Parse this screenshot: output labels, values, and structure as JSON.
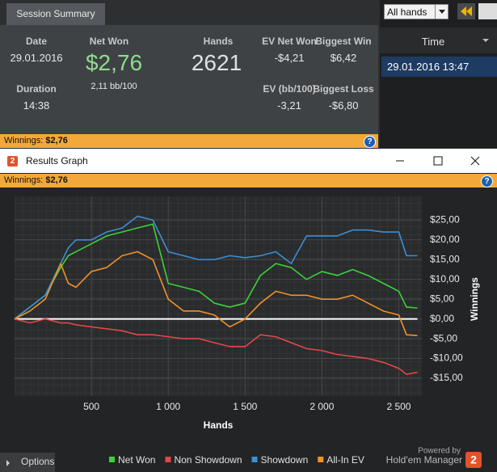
{
  "session_summary": {
    "tab": "Session Summary",
    "date_label": "Date",
    "date": "29.01.2016",
    "net_won_label": "Net Won",
    "net_won": "$2,76",
    "bb_per_100": "2,11 bb/100",
    "hands_label": "Hands",
    "hands": "2621",
    "ev_net_won_label": "EV Net Won",
    "ev_net_won": "-$4,21",
    "biggest_win_label": "Biggest Win",
    "biggest_win": "$6,42",
    "duration_label": "Duration",
    "duration": "14:38",
    "ev_bb_label": "EV (bb/100)",
    "ev_bb": "-3,21",
    "biggest_loss_label": "Biggest Loss",
    "biggest_loss": "-$6,80",
    "winnings_label": "Winnings:",
    "winnings": "$2,76"
  },
  "sessions_panel": {
    "filter": "All hands",
    "column": "Time",
    "rows": [
      "29.01.2016 13:47"
    ]
  },
  "window": {
    "icon": "2",
    "title": "Results Graph",
    "winnings_label": "Winnings:",
    "winnings": "$2,76"
  },
  "footer": {
    "options": "Options",
    "powered_by": "Powered by",
    "brand": "Hold'em Manager",
    "logo": "2"
  },
  "chart_data": {
    "type": "line",
    "x_label": "Hands",
    "y_label": "Winnings",
    "x": [
      0,
      100,
      200,
      300,
      350,
      400,
      500,
      600,
      700,
      800,
      900,
      1000,
      1100,
      1200,
      1300,
      1400,
      1500,
      1600,
      1700,
      1800,
      1900,
      2000,
      2100,
      2200,
      2300,
      2400,
      2500,
      2550,
      2621
    ],
    "series": [
      {
        "name": "Net Won",
        "color": "#3bd13b",
        "values": [
          0,
          3,
          6,
          13,
          16,
          17,
          19,
          21,
          22,
          23,
          24,
          9,
          8,
          7,
          4,
          3,
          4,
          11,
          14,
          13,
          10,
          12,
          11,
          12.5,
          11,
          9,
          7,
          3,
          2.76
        ]
      },
      {
        "name": "Non Showdown",
        "color": "#e04848",
        "values": [
          0,
          -1,
          0,
          -1,
          -1,
          -1.5,
          -2,
          -2.5,
          -3,
          -4,
          -4,
          -4.5,
          -5,
          -5,
          -6,
          -7,
          -7,
          -4,
          -4.5,
          -6,
          -7.5,
          -8,
          -9,
          -9.5,
          -10,
          -11,
          -12.5,
          -14,
          -13.5
        ]
      },
      {
        "name": "Showdown",
        "color": "#3a8fd8",
        "values": [
          0,
          3,
          6,
          14,
          18,
          20,
          20,
          22,
          23,
          26,
          25,
          17,
          16,
          15,
          15,
          16,
          15.5,
          16,
          17,
          14,
          21,
          21,
          21,
          22.5,
          22.5,
          22,
          22,
          16,
          16
        ]
      },
      {
        "name": "All-In EV",
        "color": "#f0922c",
        "values": [
          0,
          2,
          5,
          14,
          9,
          8,
          12,
          13,
          16,
          17,
          15,
          5,
          2,
          2,
          1,
          -2,
          0,
          4,
          7,
          6,
          6,
          5,
          5,
          6,
          4,
          2,
          1,
          -4,
          -4.21
        ]
      }
    ],
    "xlim": [
      0,
      2650
    ],
    "ylim": [
      -19.5,
      31
    ],
    "xticks": [
      500,
      {
        "value": 1000,
        "label": "1 000"
      },
      {
        "value": 1500,
        "label": "1 500"
      },
      {
        "value": 2000,
        "label": "2 000"
      },
      {
        "value": 2500,
        "label": "2 500"
      }
    ],
    "yticks": [
      {
        "value": 25,
        "label": "$25,00"
      },
      {
        "value": 20,
        "label": "$20,00"
      },
      {
        "value": 15,
        "label": "$15,00"
      },
      {
        "value": 10,
        "label": "$10,00"
      },
      {
        "value": 5,
        "label": "$5,00"
      },
      {
        "value": 0,
        "label": "$0,00"
      },
      {
        "value": -5,
        "label": "-$5,00"
      },
      {
        "value": -10,
        "label": "-$10,00"
      },
      {
        "value": -15,
        "label": "-$15,00"
      }
    ],
    "grid": true,
    "zero_line": true,
    "legend": "bottom"
  }
}
